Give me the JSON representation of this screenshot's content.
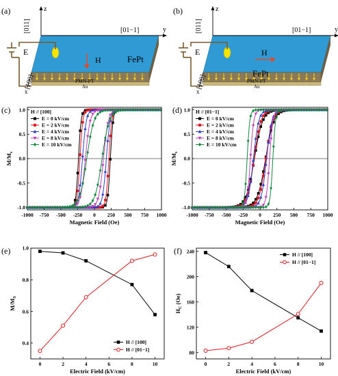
{
  "schematics": [
    {
      "panel_label": "(a)",
      "axis_z": "z",
      "axis_y": "y",
      "axis_x": "x",
      "dir_z": "[011]",
      "dir_y": "[01−1]",
      "dir_x": "[100]",
      "field_label": "H",
      "field_orientation": "down",
      "film_label": "FePt",
      "substrate_label": "PMN-PT",
      "electrode_label": "Au",
      "source_label": "E",
      "film_color": "#2f9ad3",
      "substrate_color": "#8b7a55",
      "arrow_color": "#e04a2a",
      "dot_color": "#f5e400"
    },
    {
      "panel_label": "(b)",
      "axis_z": "z",
      "axis_y": "y",
      "axis_x": "x",
      "dir_z": "[011]",
      "dir_y": "[01−1]",
      "dir_x": "[100]",
      "field_label": "H",
      "field_orientation": "right",
      "film_label": "FePt",
      "substrate_label": "PMN-PT",
      "electrode_label": "Au",
      "source_label": "E",
      "film_color": "#2f9ad3",
      "substrate_color": "#8b7a55",
      "arrow_color": "#e04a2a",
      "dot_color": "#f5e400"
    }
  ],
  "chart_data": [
    {
      "panel_label": "(c)",
      "type": "line",
      "xlabel": "Magnetic Field (Oe)",
      "ylabel": "M/Ms",
      "xlim": [
        -1000,
        1000
      ],
      "ylim": [
        -1.05,
        1.05
      ],
      "xticks": [
        -1000,
        -750,
        -500,
        -250,
        0,
        250,
        500,
        750,
        1000
      ],
      "yticks": [
        -1.0,
        -0.5,
        0.0,
        0.5,
        1.0
      ],
      "xtick_labels": [
        "-1000",
        "-750",
        "-500",
        "-250",
        "0",
        "250",
        "500",
        "750",
        "1000"
      ],
      "ytick_labels": [
        "-1.0",
        "-0.5",
        "0.0",
        "0.5",
        "1.0"
      ],
      "legend_title": "H // [100]",
      "legend_position": "top-left",
      "zero_line": true,
      "series": [
        {
          "name": "E = 0 kV/cm",
          "color": "#000000",
          "marker": "square",
          "coercive_field": 238,
          "remanence": 0.98,
          "loop_width": 55
        },
        {
          "name": "E = 2 kV/cm",
          "color": "#e8141c",
          "marker": "circle",
          "coercive_field": 216,
          "remanence": 0.97,
          "loop_width": 60
        },
        {
          "name": "E = 4 kV/cm",
          "color": "#2a3fd1",
          "marker": "triangle-up",
          "coercive_field": 178,
          "remanence": 0.92,
          "loop_width": 80
        },
        {
          "name": "E = 8 kV/cm",
          "color": "#c040c0",
          "marker": "triangle-down",
          "coercive_field": 135,
          "remanence": 0.77,
          "loop_width": 100
        },
        {
          "name": "E = 10 kV/cm",
          "color": "#0f8a3c",
          "marker": "diamond",
          "coercive_field": 114,
          "remanence": 0.58,
          "loop_width": 150
        }
      ]
    },
    {
      "panel_label": "(d)",
      "type": "line",
      "xlabel": "Magnetic Field (Oe)",
      "ylabel": "M/Ms",
      "xlim": [
        -1000,
        1000
      ],
      "ylim": [
        -1.05,
        1.05
      ],
      "xticks": [
        -1000,
        -750,
        -500,
        -250,
        0,
        250,
        500,
        750,
        1000
      ],
      "yticks": [
        -1.0,
        -0.5,
        0.0,
        0.5,
        1.0
      ],
      "xtick_labels": [
        "-1000",
        "-750",
        "-500",
        "-250",
        "0",
        "250",
        "500",
        "750",
        "1000"
      ],
      "ytick_labels": [
        "-1.0",
        "-0.5",
        "0.0",
        "0.5",
        "1.0"
      ],
      "legend_title": "H // [01−1]",
      "legend_position": "top-left",
      "zero_line": true,
      "series": [
        {
          "name": "E = 0 kV/cm",
          "color": "#000000",
          "marker": "square",
          "coercive_field": 83,
          "remanence": 0.35,
          "loop_width": 170
        },
        {
          "name": "E = 2 kV/cm",
          "color": "#e8141c",
          "marker": "circle",
          "coercive_field": 87,
          "remanence": 0.51,
          "loop_width": 140
        },
        {
          "name": "E = 4 kV/cm",
          "color": "#2a3fd1",
          "marker": "triangle-up",
          "coercive_field": 97,
          "remanence": 0.69,
          "loop_width": 110
        },
        {
          "name": "E = 8 kV/cm",
          "color": "#c040c0",
          "marker": "triangle-down",
          "coercive_field": 141,
          "remanence": 0.92,
          "loop_width": 70
        },
        {
          "name": "E = 10 kV/cm",
          "color": "#0f8a3c",
          "marker": "diamond",
          "coercive_field": 190,
          "remanence": 0.96,
          "loop_width": 55
        }
      ]
    },
    {
      "panel_label": "(e)",
      "type": "line",
      "xlabel": "Electric Field (kV/cm)",
      "ylabel": "M/MS",
      "xlim": [
        -0.8,
        10.8
      ],
      "ylim": [
        0.3,
        1.0
      ],
      "xticks": [
        0,
        2,
        4,
        6,
        8,
        10
      ],
      "yticks": [
        0.4,
        0.6,
        0.8,
        1.0
      ],
      "xtick_labels": [
        "0",
        "2",
        "4",
        "6",
        "8",
        "10"
      ],
      "ytick_labels": [
        "0.4",
        "0.6",
        "0.8",
        "1.0"
      ],
      "legend_position": "bottom-right",
      "x": [
        0,
        2,
        4,
        8,
        10
      ],
      "series": [
        {
          "name": "H // [100]",
          "color": "#000000",
          "marker": "square",
          "values": [
            0.98,
            0.97,
            0.92,
            0.77,
            0.58
          ]
        },
        {
          "name": "H // [01−1]",
          "color": "#e8141c",
          "marker": "circle",
          "values": [
            0.35,
            0.51,
            0.69,
            0.92,
            0.96
          ]
        }
      ]
    },
    {
      "panel_label": "(f)",
      "type": "line",
      "xlabel": "Electric Field (kV/cm)",
      "ylabel": "HC (Oe)",
      "xlim": [
        -0.8,
        10.8
      ],
      "ylim": [
        70,
        245
      ],
      "xticks": [
        0,
        2,
        4,
        6,
        8,
        10
      ],
      "yticks": [
        80,
        120,
        160,
        200,
        240
      ],
      "xtick_labels": [
        "0",
        "2",
        "4",
        "6",
        "8",
        "10"
      ],
      "ytick_labels": [
        "80",
        "120",
        "160",
        "200",
        "240"
      ],
      "legend_position": "top-right",
      "x": [
        0,
        2,
        4,
        8,
        10
      ],
      "series": [
        {
          "name": "H // [100]",
          "color": "#000000",
          "marker": "square",
          "values": [
            238,
            216,
            178,
            135,
            114
          ]
        },
        {
          "name": "H // [01−1]",
          "color": "#e8141c",
          "marker": "circle",
          "values": [
            83,
            87,
            97,
            141,
            190
          ]
        }
      ]
    }
  ]
}
